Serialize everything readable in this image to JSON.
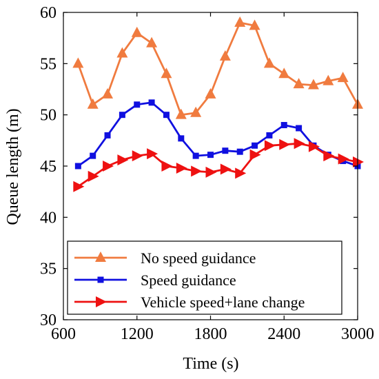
{
  "chart_data": {
    "type": "line",
    "title": "",
    "xlabel": "Time (s)",
    "ylabel": "Queue length (m)",
    "xlim": [
      600,
      3000
    ],
    "ylim": [
      30,
      60
    ],
    "xticks": [
      600,
      1200,
      1800,
      2400,
      3000
    ],
    "yticks": [
      30,
      35,
      40,
      45,
      50,
      55,
      60
    ],
    "grid": false,
    "legend_position": "bottom-left",
    "series": [
      {
        "name": "No speed guidance",
        "color": "#F07B3F",
        "marker": "triangle-up",
        "x": [
          720,
          840,
          960,
          1080,
          1200,
          1320,
          1440,
          1560,
          1680,
          1800,
          1920,
          2040,
          2160,
          2280,
          2400,
          2520,
          2640,
          2760,
          2880,
          3000
        ],
        "y": [
          55,
          51,
          52,
          56,
          58,
          57,
          54,
          50,
          50.2,
          52,
          55.7,
          59,
          58.7,
          55,
          54,
          53,
          52.9,
          53.3,
          53.6,
          51
        ]
      },
      {
        "name": "Speed guidance",
        "color": "#1010E0",
        "marker": "square",
        "x": [
          720,
          840,
          960,
          1080,
          1200,
          1320,
          1440,
          1560,
          1680,
          1800,
          1920,
          2040,
          2160,
          2280,
          2400,
          2520,
          2640,
          2760,
          2880,
          3000
        ],
        "y": [
          45,
          46,
          48,
          50,
          51,
          51.2,
          50,
          47.7,
          46,
          46.1,
          46.5,
          46.4,
          47,
          48,
          49,
          48.7,
          47,
          46.1,
          45.5,
          45
        ]
      },
      {
        "name": "Vehicle speed+lane change",
        "color": "#EE1111",
        "marker": "triangle-right",
        "x": [
          720,
          840,
          960,
          1080,
          1200,
          1320,
          1440,
          1560,
          1680,
          1800,
          1920,
          2040,
          2160,
          2280,
          2400,
          2520,
          2640,
          2760,
          2880,
          3000
        ],
        "y": [
          43,
          44,
          45,
          45.6,
          46,
          46.2,
          45,
          44.8,
          44.5,
          44.4,
          44.7,
          44.3,
          46.1,
          47,
          47.1,
          47.2,
          46.9,
          46,
          45.7,
          45.4
        ]
      }
    ]
  }
}
